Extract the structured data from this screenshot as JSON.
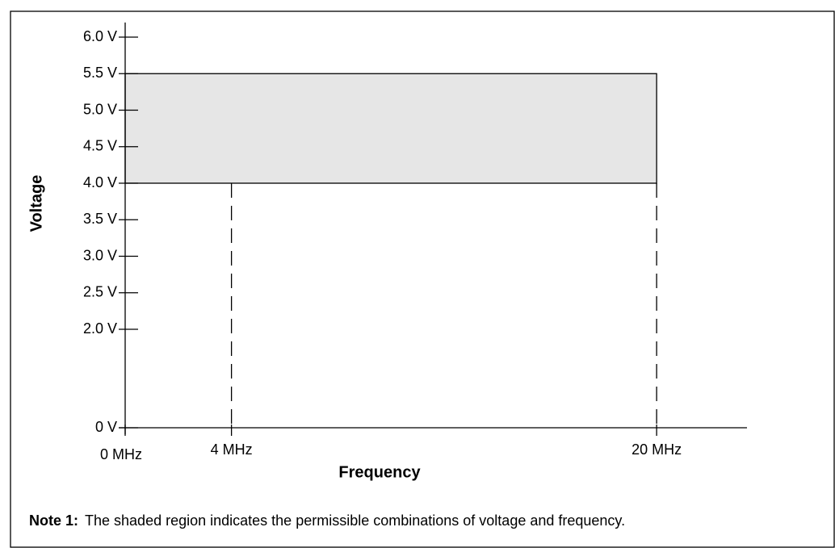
{
  "chart_data": {
    "type": "region",
    "xlabel": "Frequency",
    "ylabel": "Voltage",
    "region": {
      "x": [
        0,
        20
      ],
      "y": [
        4.0,
        5.5
      ]
    },
    "color": "#e6e6e6",
    "dashed_guides": true,
    "xlim": [
      0,
      23.4
    ],
    "xticks": [
      {
        "value": 0,
        "label": "0 MHz"
      },
      {
        "value": 4,
        "label": "4 MHz"
      },
      {
        "value": 20,
        "label": "20 MHz"
      }
    ],
    "ylim": [
      0,
      6.2
    ],
    "yticks": [
      {
        "value": 0,
        "label": "0 V"
      },
      {
        "value": 2.0,
        "label": "2.0 V"
      },
      {
        "value": 2.5,
        "label": "2.5 V"
      },
      {
        "value": 3.0,
        "label": "3.0 V"
      },
      {
        "value": 3.5,
        "label": "3.5 V"
      },
      {
        "value": 4.0,
        "label": "4.0 V"
      },
      {
        "value": 4.5,
        "label": "4.5 V"
      },
      {
        "value": 5.0,
        "label": "5.0 V"
      },
      {
        "value": 5.5,
        "label": "5.5 V"
      },
      {
        "value": 6.0,
        "label": "6.0 V"
      }
    ],
    "note": {
      "label": "Note 1:",
      "text": "The shaded region indicates the permissible combinations of voltage and frequency."
    }
  }
}
